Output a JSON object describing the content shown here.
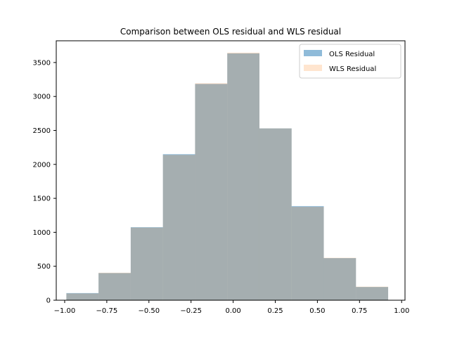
{
  "colors": {
    "ols": "#1f77b4",
    "wls": "#ff7f0e",
    "axes": "#000000",
    "background": "#ffffff"
  },
  "chart_data": {
    "type": "histogram",
    "title": "Comparison between OLS residual and WLS residual",
    "xlabel": "",
    "ylabel": "",
    "xlim": [
      -1.05,
      1.02
    ],
    "ylim": [
      0,
      3820
    ],
    "x_ticks": [
      -1.0,
      -0.75,
      -0.5,
      -0.25,
      0.0,
      0.25,
      0.5,
      0.75,
      1.0
    ],
    "x_tick_labels": [
      "−1.00",
      "−0.75",
      "−0.50",
      "−0.25",
      "0.00",
      "0.25",
      "0.50",
      "0.75",
      "1.00"
    ],
    "y_ticks": [
      0,
      500,
      1000,
      1500,
      2000,
      2500,
      3000,
      3500
    ],
    "y_tick_labels": [
      "0",
      "500",
      "1000",
      "1500",
      "2000",
      "2500",
      "3000",
      "3500"
    ],
    "bin_edges": [
      -0.99,
      -0.799,
      -0.608,
      -0.417,
      -0.226,
      -0.035,
      0.156,
      0.347,
      0.538,
      0.729,
      0.92
    ],
    "series": [
      {
        "name": "OLS Residual",
        "color": "#1f77b4",
        "alpha": 0.5,
        "values": [
          105,
          400,
          1075,
          2150,
          3185,
          3635,
          2530,
          1385,
          620,
          195
        ]
      },
      {
        "name": "WLS Residual",
        "color": "#ff7f0e",
        "alpha": 0.2,
        "values": [
          100,
          405,
          1070,
          2140,
          3195,
          3645,
          2530,
          1375,
          625,
          200
        ]
      }
    ],
    "legend_position": "top-right",
    "grid": false
  }
}
